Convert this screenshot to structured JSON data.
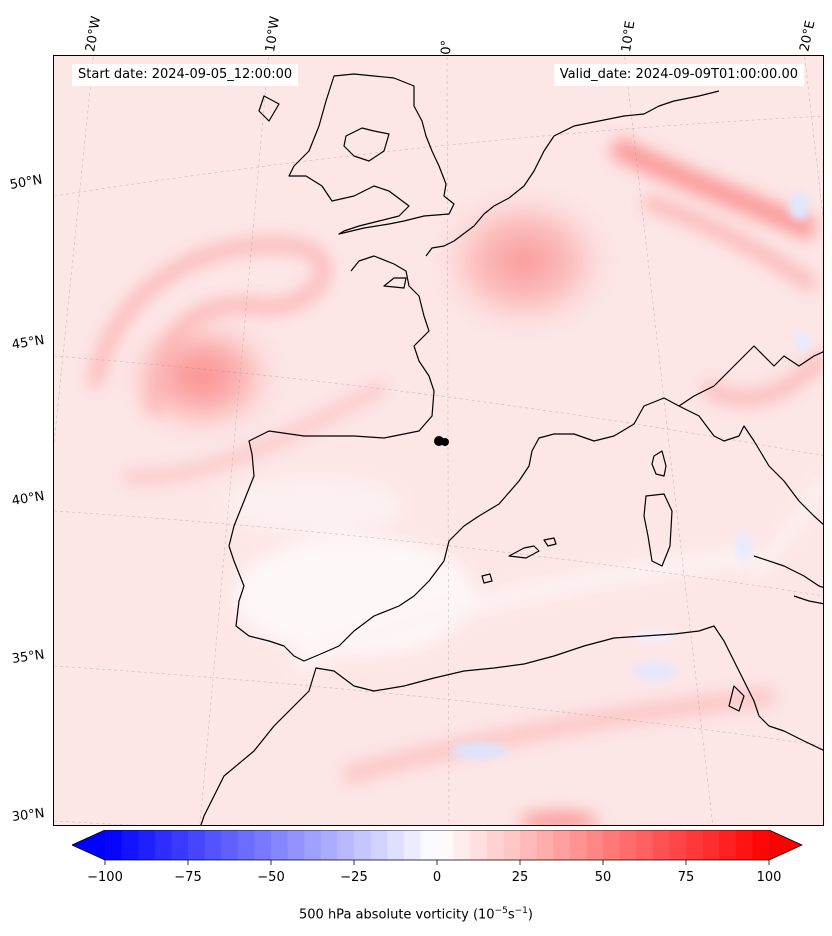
{
  "map": {
    "start_label": "Start date: 2024-09-05_12:00:00",
    "valid_label": "Valid_date: 2024-09-09T01:00:00.00",
    "lon_labels": [
      "20°W",
      "10°W",
      "0°",
      "10°E",
      "20°E"
    ],
    "lat_labels": [
      "50°N",
      "45°N",
      "40°N",
      "35°N",
      "30°N"
    ],
    "field": "500 hPa absolute vorticity",
    "region": "Western Europe, Iberian Peninsula, western Mediterranean, NW Africa"
  },
  "colorbar": {
    "title_text": "500 hPa absolute vorticity (",
    "title_unit_a": "10",
    "title_exp_a": "−5",
    "title_unit_b": "s",
    "title_exp_b": "−1",
    "title_close": ")",
    "ticks": [
      "−100",
      "−75",
      "−50",
      "−25",
      "0",
      "25",
      "50",
      "75",
      "100"
    ],
    "min": -100,
    "max": 100,
    "levels": 40,
    "colors": {
      "negative": "#0000ff",
      "zero": "#ffffff",
      "positive": "#ff0000"
    },
    "extend": "both"
  }
}
